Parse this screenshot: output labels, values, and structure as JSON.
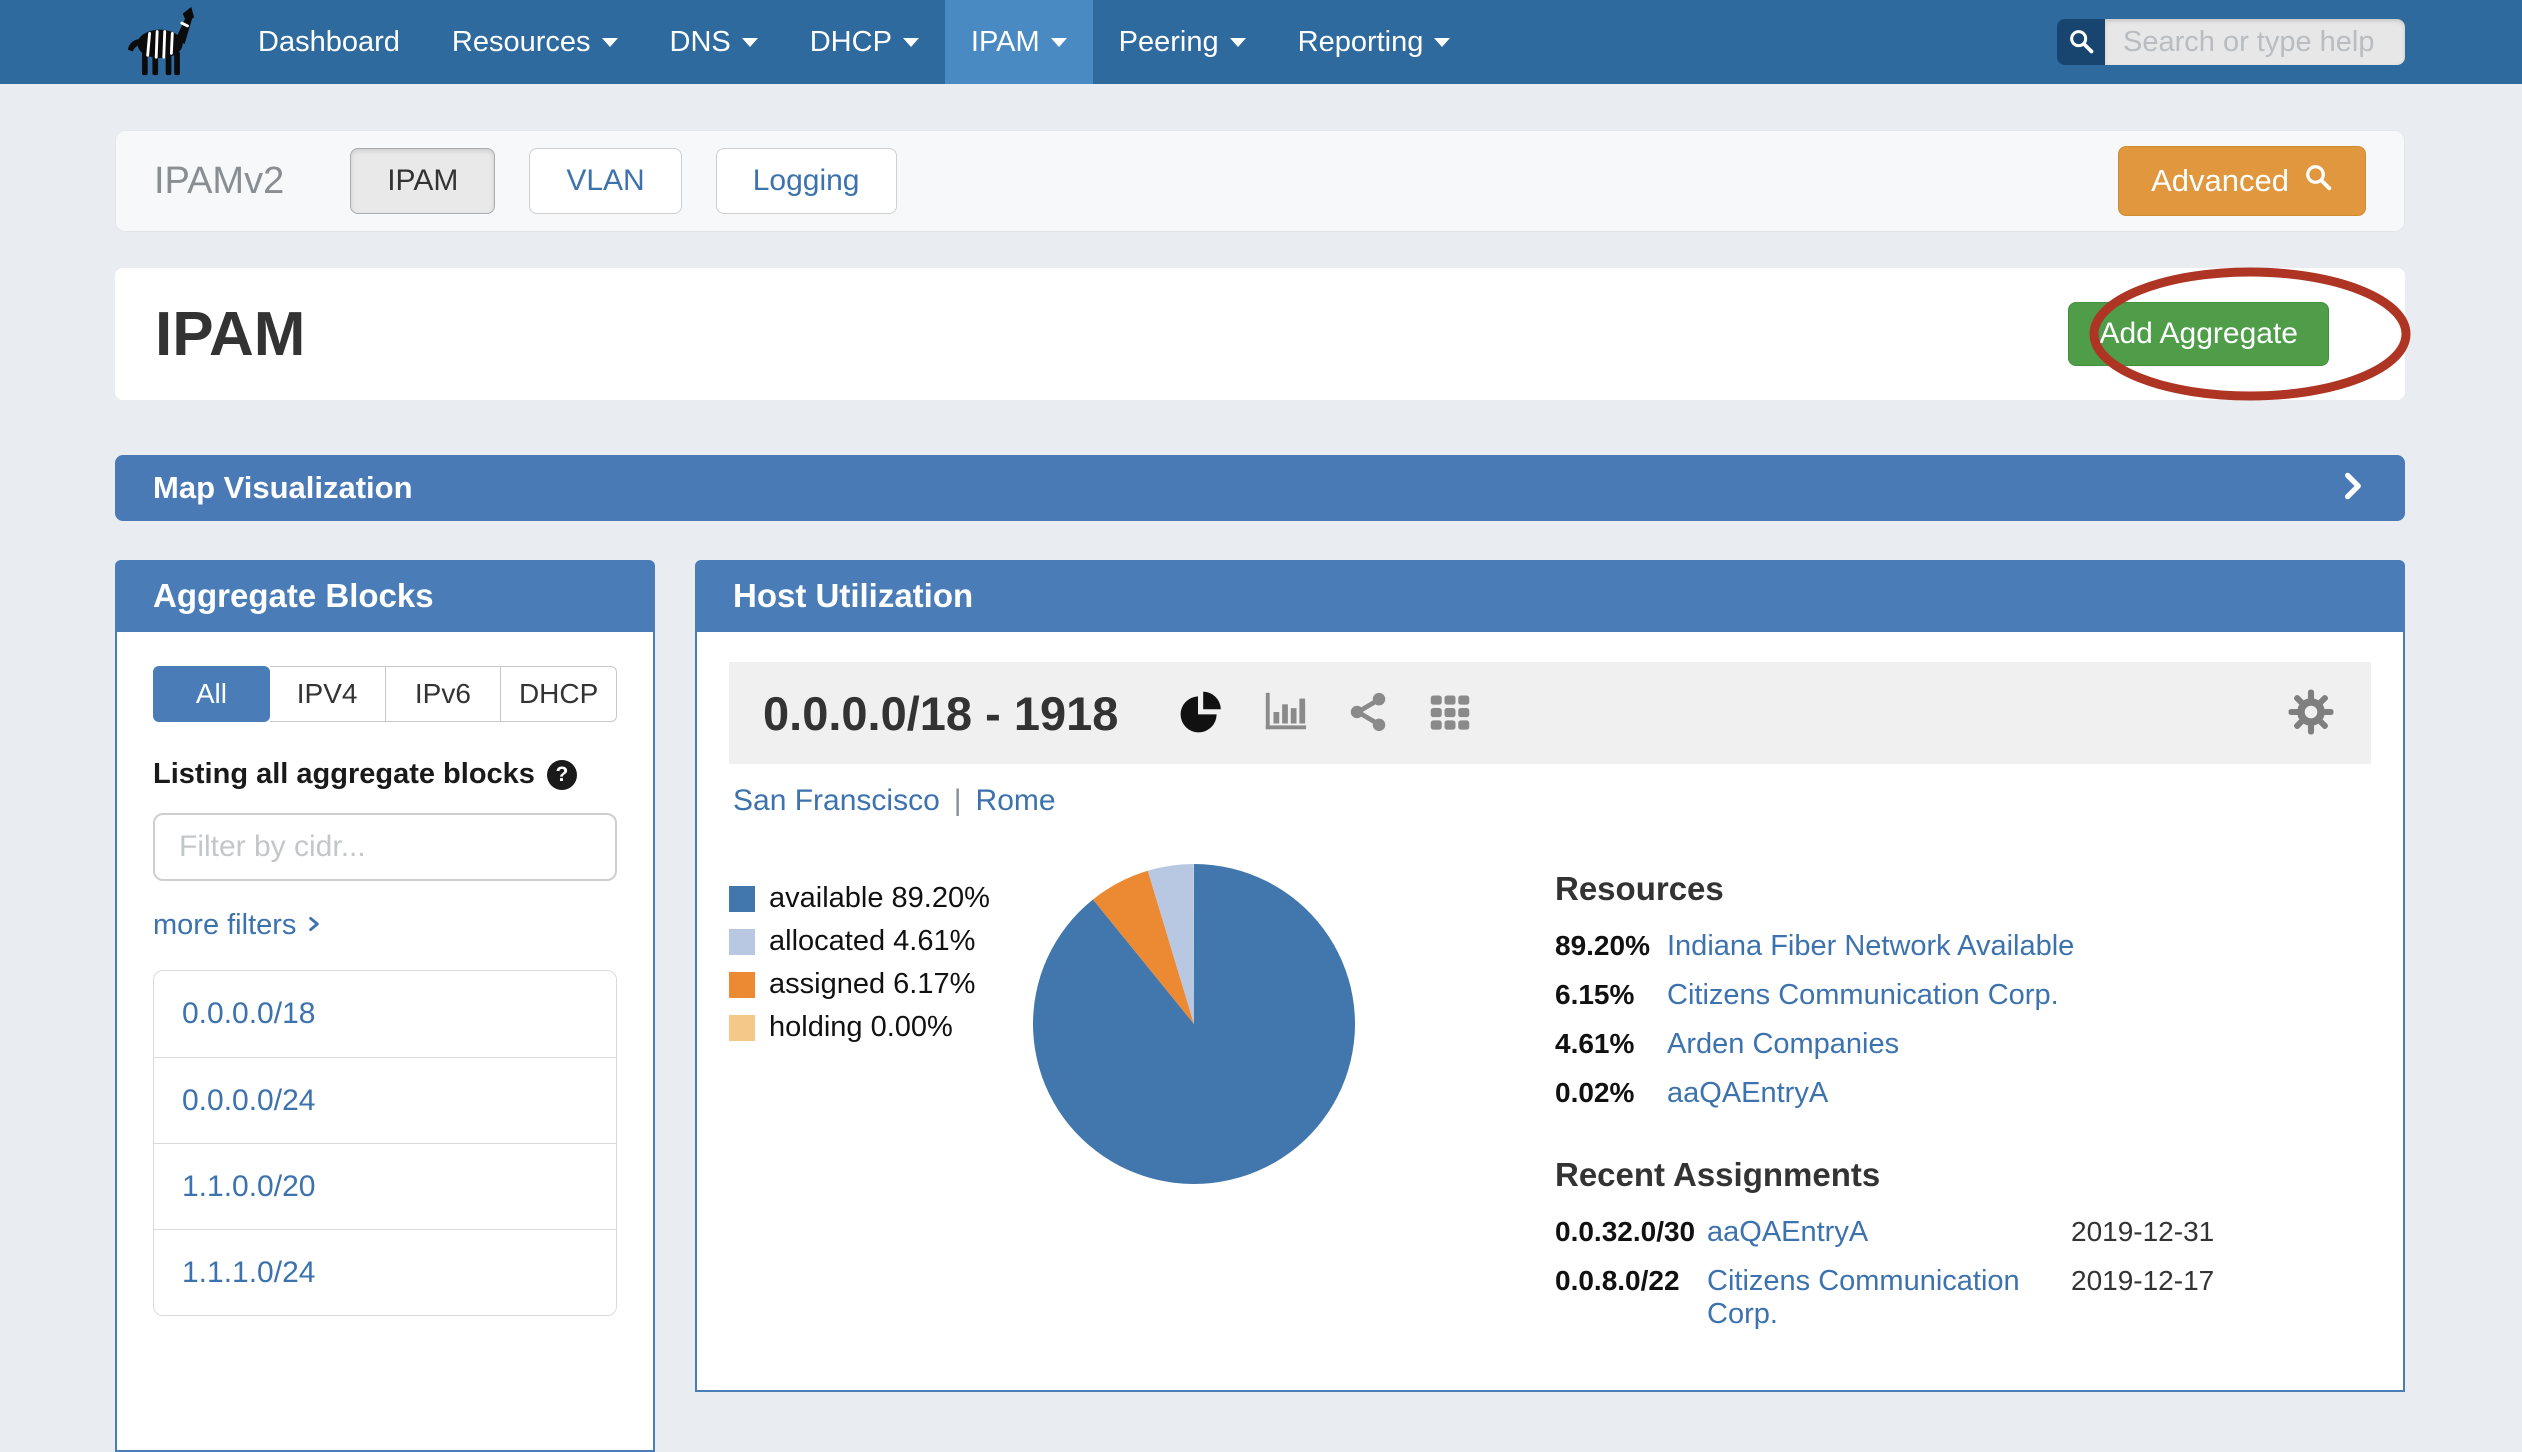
{
  "navbar": {
    "items": [
      {
        "label": "Dashboard",
        "caret": false,
        "active": false
      },
      {
        "label": "Resources",
        "caret": true,
        "active": false
      },
      {
        "label": "DNS",
        "caret": true,
        "active": false
      },
      {
        "label": "DHCP",
        "caret": true,
        "active": false
      },
      {
        "label": "IPAM",
        "caret": true,
        "active": true
      },
      {
        "label": "Peering",
        "caret": true,
        "active": false
      },
      {
        "label": "Reporting",
        "caret": true,
        "active": false
      }
    ],
    "search_placeholder": "Search or type help"
  },
  "toolbar": {
    "title": "IPAMv2",
    "buttons": [
      {
        "label": "IPAM",
        "active": true
      },
      {
        "label": "VLAN",
        "active": false
      },
      {
        "label": "Logging",
        "active": false
      }
    ],
    "advanced_label": "Advanced"
  },
  "page_header": {
    "title": "IPAM",
    "add_button_label": "Add Aggregate",
    "annotation": "red ellipse highlighting Add Aggregate button"
  },
  "map_bar": {
    "label": "Map Visualization"
  },
  "aggregate_blocks": {
    "title": "Aggregate Blocks",
    "tabs": [
      {
        "label": "All",
        "active": true
      },
      {
        "label": "IPV4",
        "active": false
      },
      {
        "label": "IPv6",
        "active": false
      },
      {
        "label": "DHCP",
        "active": false
      }
    ],
    "listing_text": "Listing all aggregate blocks",
    "filter_placeholder": "Filter by cidr...",
    "more_filters_label": "more filters",
    "items": [
      "0.0.0.0/18",
      "0.0.0.0/24",
      "1.1.0.0/20",
      "1.1.1.0/24"
    ]
  },
  "host_utilization": {
    "title": "Host Utilization",
    "block_title": "0.0.0.0/18 - 1918",
    "links": [
      "San Franscisco",
      "Rome"
    ],
    "link_separator": "|",
    "resources": {
      "heading": "Resources",
      "rows": [
        {
          "pct": "89.20%",
          "name": "Indiana Fiber Network Available"
        },
        {
          "pct": "6.15%",
          "name": "Citizens Communication Corp."
        },
        {
          "pct": "4.61%",
          "name": "Arden Companies"
        },
        {
          "pct": "0.02%",
          "name": "aaQAEntryA"
        }
      ]
    },
    "recent_assignments": {
      "heading": "Recent Assignments",
      "rows": [
        {
          "cidr": "0.0.32.0/30",
          "name": "aaQAEntryA",
          "date": "2019-12-31"
        },
        {
          "cidr": "0.0.8.0/22",
          "name": "Citizens Communication Corp.",
          "date": "2019-12-17"
        }
      ]
    }
  },
  "chart_data": {
    "type": "pie",
    "title": "Host Utilization 0.0.0.0/18 - 1918",
    "legend": [
      {
        "label": "available",
        "pct": "89.20%",
        "color": "#4177ac"
      },
      {
        "label": "allocated",
        "pct": "4.61%",
        "color": "#b8c7e2"
      },
      {
        "label": "assigned",
        "pct": "6.17%",
        "color": "#ec8a33"
      },
      {
        "label": "holding",
        "pct": "0.00%",
        "color": "#f4c888"
      }
    ],
    "values": {
      "available": 89.2,
      "allocated": 4.61,
      "assigned": 6.17,
      "holding": 0.0
    },
    "draw_order_clockwise_from_top": [
      "available",
      "assigned",
      "allocated",
      "holding"
    ],
    "legend_position": "left"
  },
  "colors": {
    "navbar": "#2e6a9e",
    "navbar_active_item": "#4a8ac2",
    "panel_header_blue": "#4a7cb8",
    "map_bar_blue": "#4a7ab5",
    "link_blue": "#3c72ad",
    "add_button_green": "#4f9c49",
    "advanced_button_orange": "#e0973d",
    "annotation_red": "#ae3424",
    "page_background": "#e9edf2"
  }
}
